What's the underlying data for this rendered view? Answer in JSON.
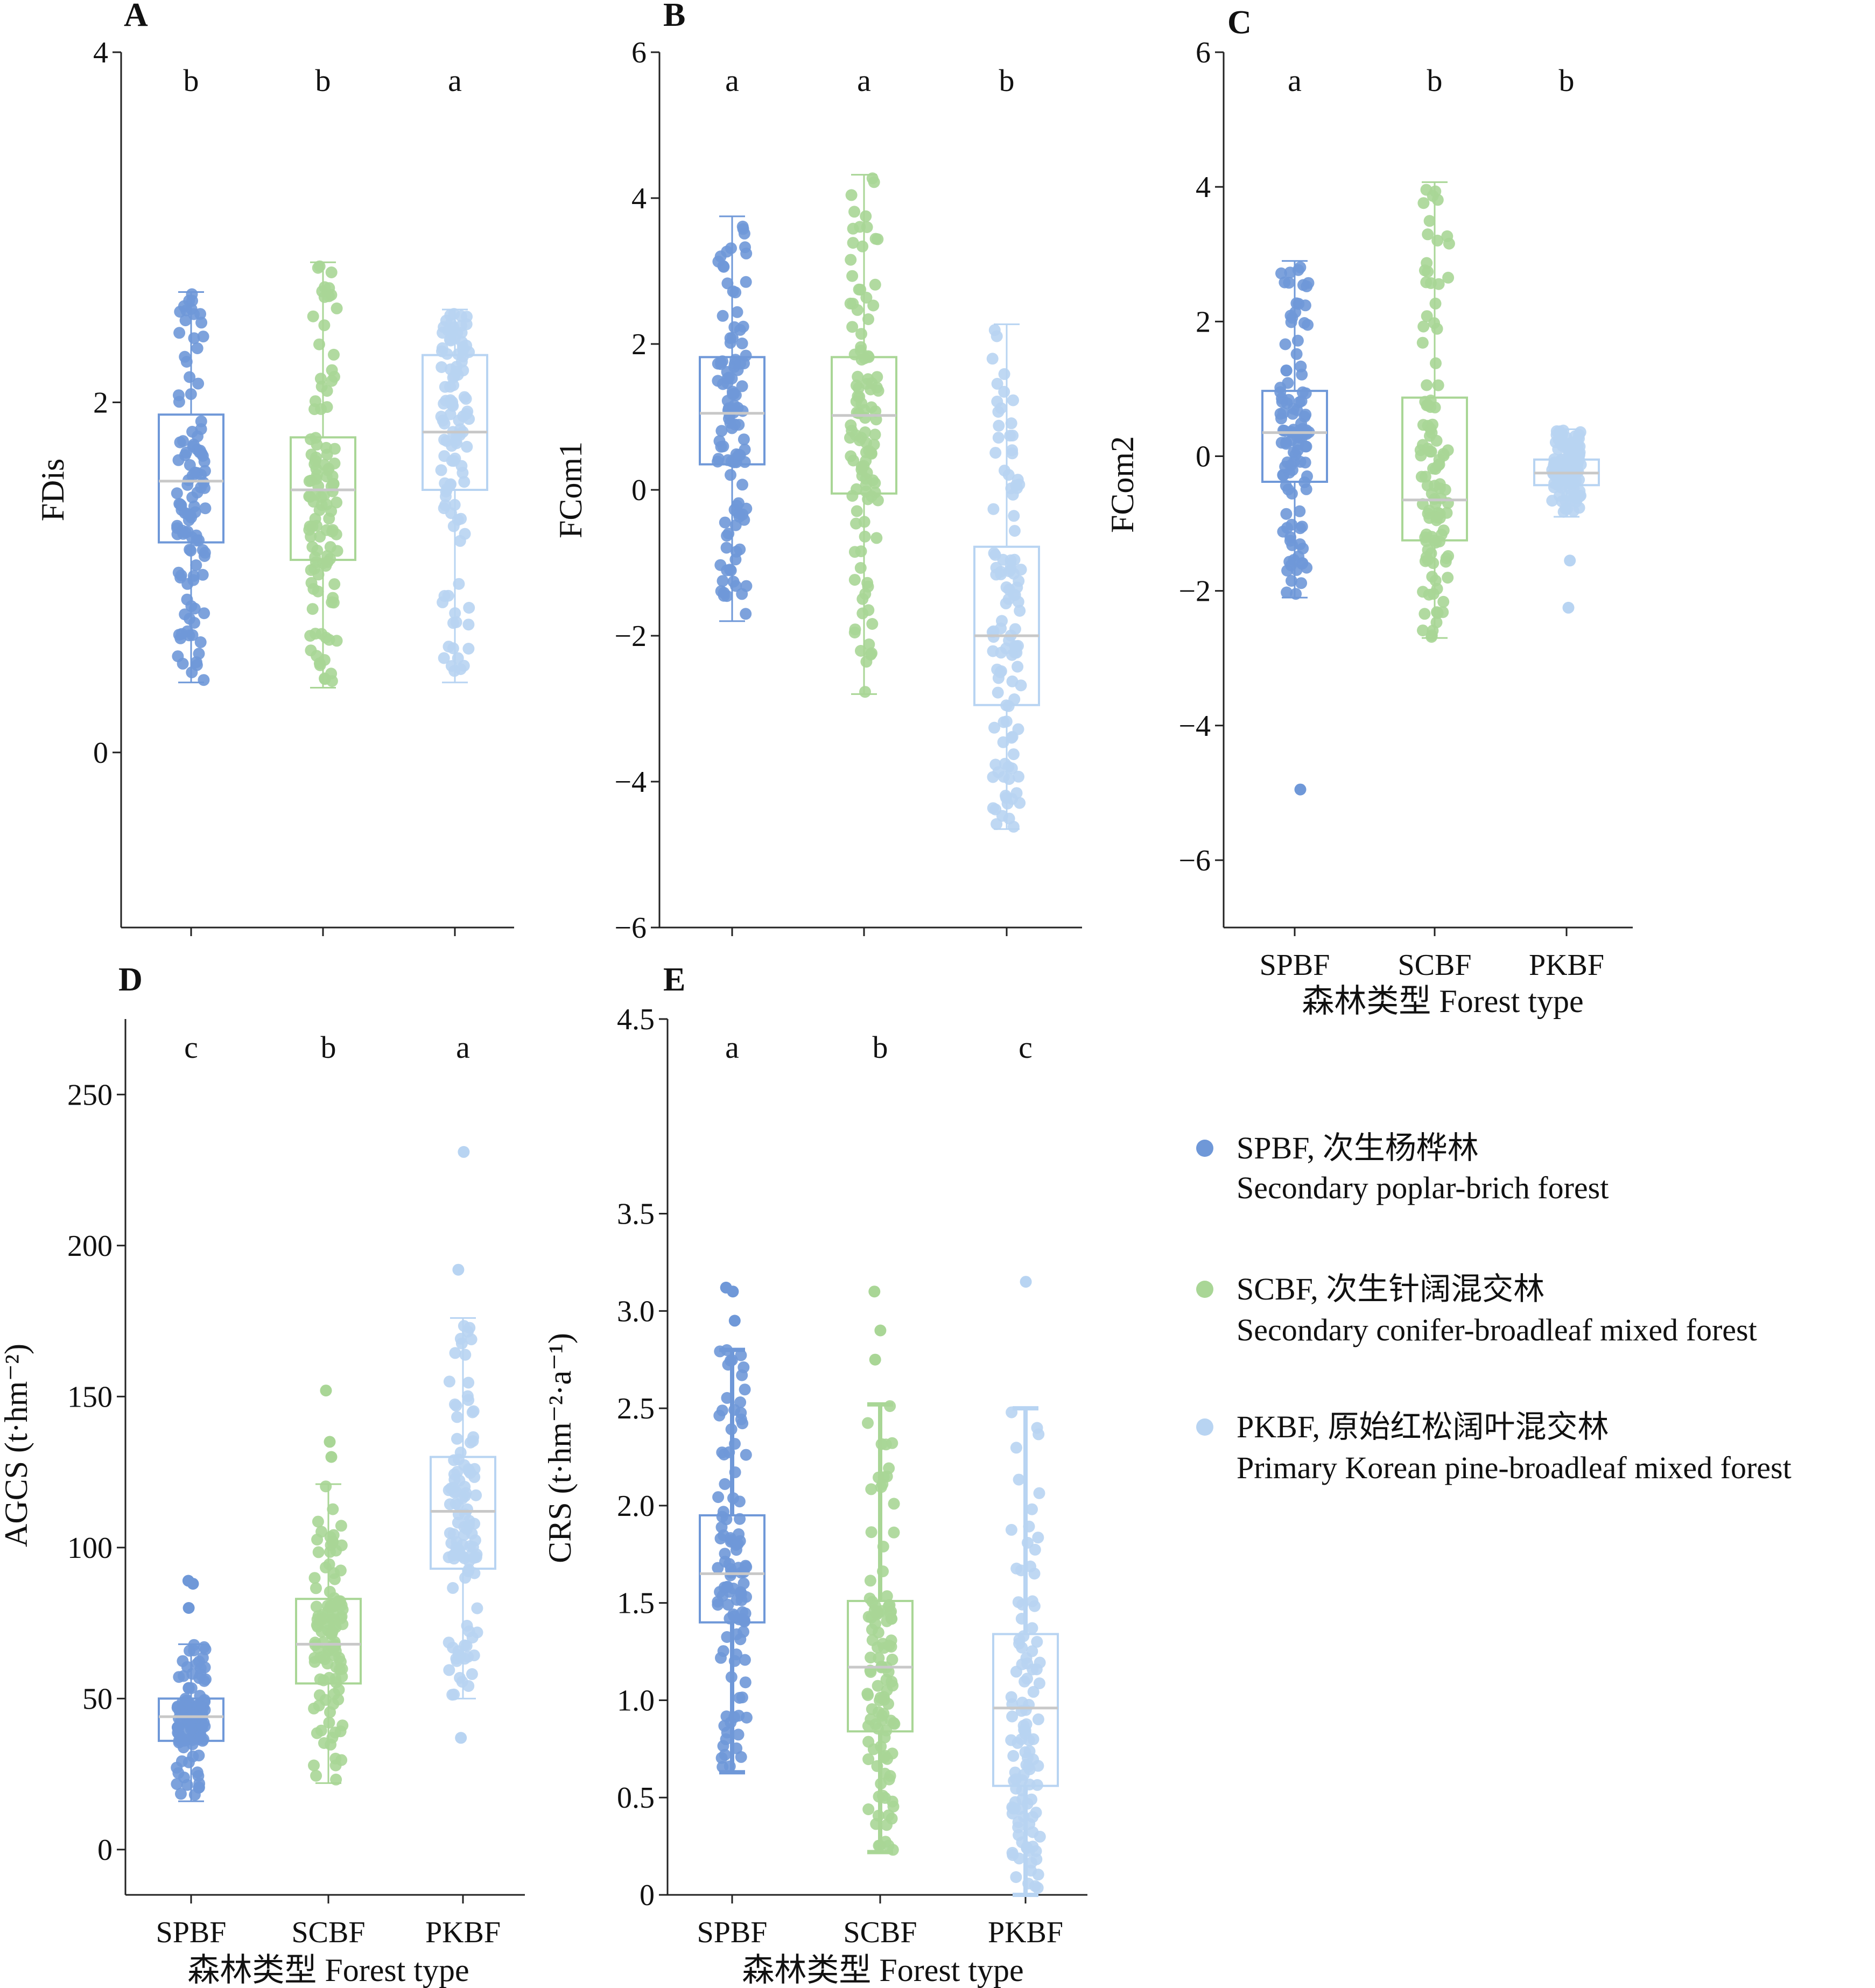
{
  "colors": {
    "SPBF": "#6f98d8",
    "SCBF": "#a9d696",
    "PKBF": "#b8d4f2",
    "median": "#c8c8c8"
  },
  "categories": [
    "SPBF",
    "SCBF",
    "PKBF"
  ],
  "xlabel": "森林类型 Forest type",
  "legend": {
    "items": [
      {
        "key": "SPBF",
        "line1": "SPBF, 次生杨桦林",
        "line2": "Secondary poplar-brich forest"
      },
      {
        "key": "SCBF",
        "line1": "SCBF, 次生针阔混交林",
        "line2": "Secondary conifer-broadleaf mixed forest"
      },
      {
        "key": "PKBF",
        "line1": "PKBF, 原始红松阔叶混交林",
        "line2": "Primary Korean pine-broadleaf mixed forest"
      }
    ]
  },
  "chart_data": [
    {
      "panel": "A",
      "type": "box",
      "ylabel": "FDis",
      "ylim": [
        -1,
        4
      ],
      "yticks": [
        0,
        2,
        4
      ],
      "ytick_labels": [
        "0",
        "2",
        "4"
      ],
      "show_xlabels": false,
      "show_xtitle": false,
      "significance": [
        "b",
        "b",
        "a"
      ],
      "series": [
        {
          "name": "SPBF",
          "min": 0.4,
          "q1": 1.2,
          "median": 1.55,
          "q3": 1.93,
          "max": 2.63
        },
        {
          "name": "SCBF",
          "min": 0.37,
          "q1": 1.1,
          "median": 1.5,
          "q3": 1.8,
          "max": 2.8
        },
        {
          "name": "PKBF",
          "min": 0.4,
          "q1": 1.5,
          "median": 1.83,
          "q3": 2.27,
          "max": 2.53
        }
      ]
    },
    {
      "panel": "B",
      "type": "box",
      "ylabel": "FCom1",
      "ylim": [
        -6,
        6
      ],
      "yticks": [
        -6,
        -4,
        -2,
        0,
        2,
        4,
        6
      ],
      "ytick_labels": [
        "−6",
        "−4",
        "−2",
        "0",
        "2",
        "4",
        "6"
      ],
      "show_xlabels": false,
      "show_xtitle": false,
      "significance": [
        "a",
        "a",
        "b"
      ],
      "series": [
        {
          "name": "SPBF",
          "min": -1.8,
          "q1": 0.35,
          "median": 1.05,
          "q3": 1.82,
          "max": 3.75
        },
        {
          "name": "SCBF",
          "min": -2.8,
          "q1": -0.05,
          "median": 1.02,
          "q3": 1.82,
          "max": 4.32
        },
        {
          "name": "PKBF",
          "min": -4.65,
          "q1": -2.95,
          "median": -2.0,
          "q3": -0.78,
          "max": 2.27
        }
      ]
    },
    {
      "panel": "C",
      "type": "box",
      "ylabel": "FCom2",
      "ylim": [
        -7,
        6
      ],
      "yticks": [
        -6,
        -4,
        -2,
        0,
        2,
        4,
        6
      ],
      "ytick_labels": [
        "−6",
        "−4",
        "−2",
        "0",
        "2",
        "4",
        "6"
      ],
      "show_xlabels": true,
      "show_xtitle": true,
      "significance": [
        "a",
        "b",
        "b"
      ],
      "series": [
        {
          "name": "SPBF",
          "min": -2.1,
          "q1": -0.38,
          "median": 0.35,
          "q3": 0.97,
          "max": 2.9,
          "outliers_low": [
            -4.95
          ]
        },
        {
          "name": "SCBF",
          "min": -2.7,
          "q1": -1.25,
          "median": -0.65,
          "q3": 0.87,
          "max": 4.07
        },
        {
          "name": "PKBF",
          "min": -0.9,
          "q1": -0.43,
          "median": -0.25,
          "q3": -0.05,
          "max": 0.4,
          "outliers_low": [
            -1.55,
            -2.25
          ]
        }
      ]
    },
    {
      "panel": "D",
      "type": "box",
      "ylabel": "AGCS (t·hm⁻²)",
      "ylim": [
        -15,
        275
      ],
      "yticks": [
        0,
        50,
        100,
        150,
        200,
        250
      ],
      "ytick_labels": [
        "0",
        "50",
        "100",
        "150",
        "200",
        "250"
      ],
      "show_xlabels": true,
      "show_xtitle": true,
      "significance": [
        "c",
        "b",
        "a"
      ],
      "series": [
        {
          "name": "SPBF",
          "min": 16,
          "q1": 36,
          "median": 44,
          "q3": 50,
          "max": 68,
          "outliers_high": [
            80,
            88,
            89
          ]
        },
        {
          "name": "SCBF",
          "min": 22,
          "q1": 55,
          "median": 68,
          "q3": 83,
          "max": 121,
          "outliers_high": [
            130,
            135,
            152
          ]
        },
        {
          "name": "PKBF",
          "min": 50,
          "q1": 93,
          "median": 112,
          "q3": 130,
          "max": 176,
          "outliers_high": [
            192,
            231
          ],
          "outliers_low": [
            37
          ]
        }
      ]
    },
    {
      "panel": "E",
      "type": "box",
      "ylabel": "CRS (t·hm⁻²·a⁻¹)",
      "ylim": [
        0,
        4.5
      ],
      "yticks": [
        0,
        0.5,
        1.0,
        1.5,
        2.0,
        2.5,
        3.0,
        3.5,
        4.5
      ],
      "ytick_labels": [
        "0",
        "0.5",
        "1.0",
        "1.5",
        "2.0",
        "2.5",
        "3.0",
        "3.5",
        "4.5"
      ],
      "show_xlabels": true,
      "show_xtitle": true,
      "significance": [
        "a",
        "b",
        "c"
      ],
      "series": [
        {
          "name": "SPBF",
          "min": 0.63,
          "q1": 1.4,
          "median": 1.65,
          "q3": 1.95,
          "max": 2.8,
          "outliers_high": [
            2.95,
            3.1,
            3.12
          ]
        },
        {
          "name": "SCBF",
          "min": 0.22,
          "q1": 0.84,
          "median": 1.17,
          "q3": 1.51,
          "max": 2.52,
          "outliers_high": [
            2.75,
            2.9,
            3.1
          ]
        },
        {
          "name": "PKBF",
          "min": 0.0,
          "q1": 0.56,
          "median": 0.96,
          "q3": 1.34,
          "max": 2.5,
          "outliers_high": [
            3.15
          ]
        }
      ]
    }
  ]
}
